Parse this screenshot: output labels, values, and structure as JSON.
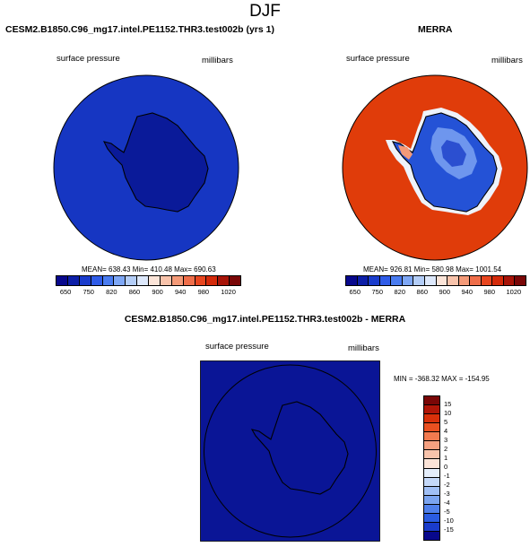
{
  "figure": {
    "title": "DJF"
  },
  "panels": {
    "model": {
      "title": "CESM2.B1850.C96_mg17.intel.PE1152.THR3.test002b (yrs 1)",
      "variable": "surface pressure",
      "units": "millibars",
      "stats": "MEAN= 638.43  Min= 410.48  Max= 690.63",
      "fill_color": "#1636c2",
      "land_color": "#0a1a99"
    },
    "obs": {
      "title": "MERRA",
      "variable": "surface pressure",
      "units": "millibars",
      "stats": "MEAN= 926.81  Min= 580.98  Max= 1001.54",
      "fill_color": "#e03c0a",
      "land_color": "#2452d6"
    },
    "diff": {
      "title": "CESM2.B1850.C96_mg17.intel.PE1152.THR3.test002b - MERRA",
      "variable": "surface pressure",
      "units": "millibars",
      "stats": "MIN = -368.32  MAX = -154.95",
      "fill_color": "#0a1596"
    }
  },
  "colorbar_abs": {
    "ticks": [
      "650",
      "750",
      "820",
      "860",
      "900",
      "940",
      "980",
      "1020"
    ],
    "colors": [
      "#08088c",
      "#0d1fa8",
      "#1a3ccc",
      "#2f5ce8",
      "#4a7cf0",
      "#7ea7f5",
      "#b3cdf7",
      "#dde8fb",
      "#fbe4d8",
      "#f8c3ab",
      "#f49a78",
      "#ef6e4a",
      "#e8461f",
      "#d42a0a",
      "#a81408",
      "#7a0707"
    ]
  },
  "colorbar_diff": {
    "ticks": [
      "15",
      "10",
      "5",
      "4",
      "3",
      "2",
      "1",
      "0",
      "-1",
      "-2",
      "-3",
      "-4",
      "-5",
      "-10",
      "-15"
    ],
    "colors": [
      "#7a0707",
      "#b01608",
      "#d8300a",
      "#ea5020",
      "#f27a4f",
      "#f5a080",
      "#f8c3ab",
      "#fce4d8",
      "#e5eefb",
      "#c4d8f8",
      "#a0bff5",
      "#7ba4f0",
      "#4f80ec",
      "#2a5ce2",
      "#1a3ccc",
      "#08088c"
    ]
  }
}
